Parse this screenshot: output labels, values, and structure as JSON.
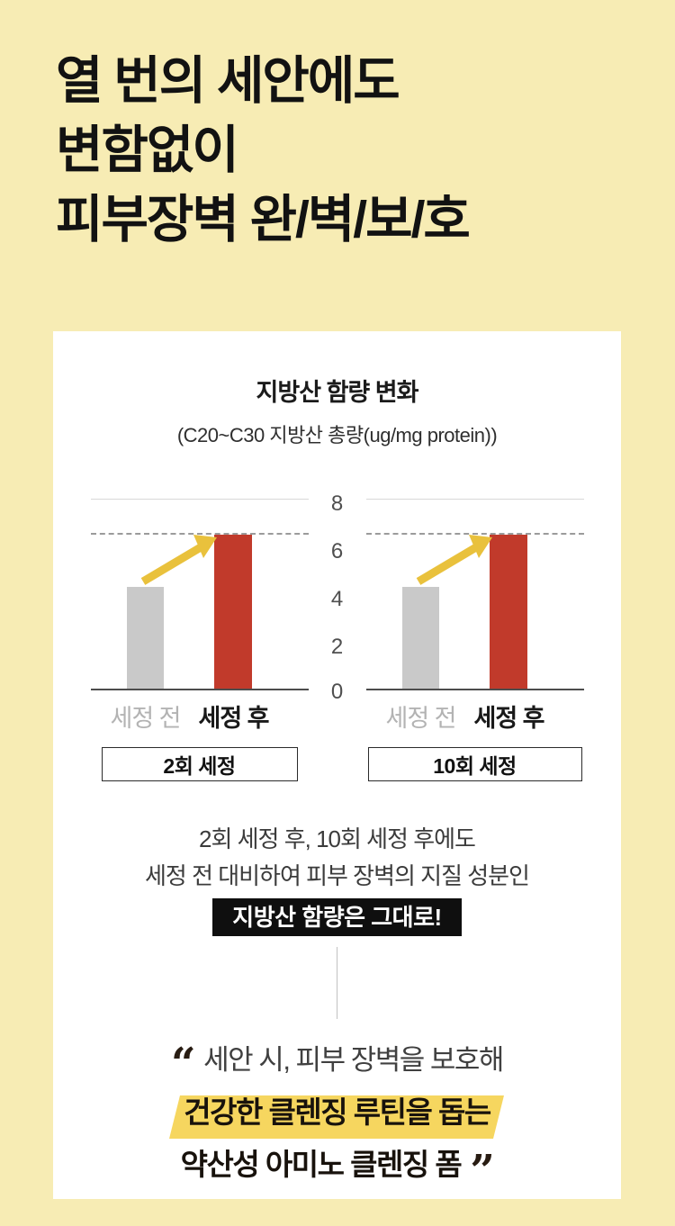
{
  "page": {
    "background_color": "#F7ECB4",
    "card_color": "#FFFFFF"
  },
  "headline": {
    "line1": "열 번의 세안에도",
    "line2": "변함없이",
    "line3": "피부장벽 완/벽/보/호"
  },
  "card": {
    "title": "지방산 함량 변화",
    "subtitle": "(C20~C30 지방산 총량(ug/mg protein))"
  },
  "chart_data": {
    "type": "bar",
    "title": "지방산 함량 변화",
    "subtitle": "(C20~C30 지방산 총량(ug/mg protein))",
    "ylim": [
      0,
      8
    ],
    "y_ticks": [
      8,
      6,
      4,
      2,
      0
    ],
    "grid": "top line at 8 and solid baseline at 0 only",
    "groups": [
      {
        "label": "2회 세정",
        "categories": [
          "세정 전",
          "세정 후"
        ],
        "values": [
          4.3,
          6.5
        ]
      },
      {
        "label": "10회 세정",
        "categories": [
          "세정 전",
          "세정 후"
        ],
        "values": [
          4.3,
          6.5
        ]
      }
    ],
    "colors": {
      "before_bar": "#C9C9C9",
      "after_bar": "#C13A2B",
      "arrow": "#E9C13C",
      "dashed_reference": "#9B9B9B"
    },
    "annotations": [
      "dashed horizontal line at the after-cleansing bar level in each panel",
      "yellow upward arrow from before-bar top to after-bar top in each panel"
    ]
  },
  "description": {
    "line1": "2회 세정 후, 10회 세정 후에도",
    "line2": "세정 전 대비하여 피부 장벽의 지질 성분인",
    "badge": "지방산 함량은 그대로!"
  },
  "quote": {
    "open_mark": "“",
    "line1": "세안 시, 피부 장벽을 보호해",
    "line2": "건강한 클렌징 루틴을 돕는",
    "line3": "약산성 아미노 클렌징 폼",
    "close_mark": "”",
    "highlight_color": "#F6D65F"
  }
}
